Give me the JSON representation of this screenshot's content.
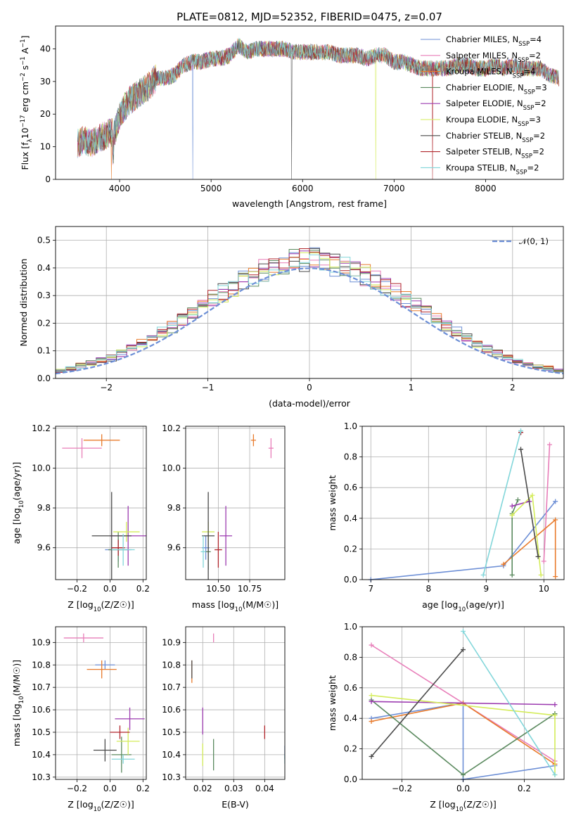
{
  "figure_title": "PLATE=0812, MJD=52352, FIBERID=0475, z=0.07",
  "series_names": [
    [
      "Chabrier MILES, N",
      "SSP",
      "=4"
    ],
    [
      "Salpeter MILES, N",
      "SSP",
      "=2"
    ],
    [
      "Kroupa MILES, N",
      "SSP",
      "=4"
    ],
    [
      "Chabrier ELODIE, N",
      "SSP",
      "=3"
    ],
    [
      "Salpeter ELODIE, N",
      "SSP",
      "=2"
    ],
    [
      "Kroupa ELODIE, N",
      "SSP",
      "=3"
    ],
    [
      "Chabrier STELIB, N",
      "SSP",
      "=2"
    ],
    [
      "Salpeter STELIB, N",
      "SSP",
      "=2"
    ],
    [
      "Kroupa STELIB, N",
      "SSP",
      "=2"
    ]
  ],
  "colors": [
    "#6d8fd6",
    "#e87eb9",
    "#e87b2c",
    "#5b8a5f",
    "#9c3bb0",
    "#d4ec5a",
    "#4a4a4a",
    "#b0262c",
    "#82d6da"
  ],
  "chart_data": [
    {
      "id": "spectrum",
      "type": "line",
      "xlabel": "wavelength [Angstrom, rest frame]",
      "ylabel": [
        "Flux [f",
        "λ",
        "10",
        "−17",
        " erg cm",
        "−2",
        " s",
        "−1",
        " A",
        "−1",
        "]"
      ],
      "xlim": [
        3300,
        8850
      ],
      "ylim": [
        0,
        47
      ],
      "xticks": [
        4000,
        5000,
        6000,
        7000,
        8000
      ],
      "yticks": [
        0,
        10,
        20,
        30,
        40
      ],
      "anchors_x": [
        3540,
        3600,
        3700,
        3800,
        3880,
        3950,
        4000,
        4050,
        4100,
        4200,
        4300,
        4400,
        4500,
        4600,
        4700,
        4800,
        4900,
        5000,
        5100,
        5200,
        5300,
        5400,
        5500,
        5600,
        5700,
        5800,
        5900,
        6000,
        6100,
        6200,
        6300,
        6400,
        6500,
        6600,
        6700,
        6800,
        6900,
        7000,
        7100,
        7200,
        7300,
        7400,
        7500,
        7600,
        7700,
        7800,
        7900,
        8000,
        8100,
        8200,
        8300,
        8400,
        8500,
        8600,
        8700,
        8800
      ],
      "anchors_y": [
        11,
        12,
        11,
        13,
        14,
        15,
        19,
        22,
        24,
        26,
        28,
        31,
        31,
        32,
        35,
        36,
        36,
        37,
        37,
        38,
        41,
        39,
        40,
        40,
        40,
        40,
        39,
        39,
        39,
        39,
        39,
        38,
        38,
        38,
        37,
        38,
        38,
        36,
        36,
        35,
        34,
        34,
        34,
        34,
        35,
        35,
        34,
        34,
        35,
        34,
        35,
        34,
        34,
        34,
        32,
        31
      ],
      "legend_position": "upper right"
    },
    {
      "id": "residuals",
      "type": "step",
      "xlabel": "(data-model)/error",
      "ylabel": "Normed distribution",
      "xlim": [
        -2.5,
        2.5
      ],
      "ylim": [
        0,
        0.55
      ],
      "xticks": [
        -2,
        -1,
        0,
        1,
        2
      ],
      "yticks": [
        0,
        0.1,
        0.2,
        0.3,
        0.4,
        0.5
      ],
      "xtick_labels": [
        "−2",
        "−1",
        "0",
        "1",
        "2"
      ],
      "ytick_labels": [
        "0.0",
        "0.1",
        "0.2",
        "0.3",
        "0.4",
        "0.5"
      ],
      "bin_width": 0.1,
      "reference_curve": {
        "name": "𝒩(0, 1)",
        "mean": 0,
        "sigma": 1,
        "color": "#6d8fd6",
        "dashed": true
      },
      "legend_position": "upper right"
    },
    {
      "id": "age_vs_Z",
      "type": "scatter",
      "xlabel": "Z [log10(Z/Z☉)]",
      "ylabel": "age [log10(age/yr)]",
      "xlim": [
        -0.33,
        0.22
      ],
      "ylim": [
        9.44,
        10.21
      ],
      "xticks": [
        -0.2,
        0.0,
        0.2
      ],
      "xtick_labels": [
        "−0.2",
        "0.0",
        "0.2"
      ],
      "yticks": [
        9.6,
        9.8,
        10.0,
        10.2
      ],
      "ytick_labels": [
        "9.6",
        "9.8",
        "10.0",
        "10.2"
      ],
      "points": [
        {
          "x": 0.05,
          "y": 9.59,
          "xerr": 0.08,
          "yerr": 0.06,
          "color": "#6d8fd6"
        },
        {
          "x": -0.17,
          "y": 10.1,
          "xerr": 0.12,
          "yerr": 0.05,
          "color": "#e87eb9"
        },
        {
          "x": -0.05,
          "y": 10.14,
          "xerr": 0.11,
          "yerr": 0.03,
          "color": "#e87b2c"
        },
        {
          "x": 0.05,
          "y": 9.59,
          "xerr": 0.06,
          "yerr": 0.09,
          "color": "#5b8a5f"
        },
        {
          "x": 0.11,
          "y": 9.66,
          "xerr": 0.11,
          "yerr": 0.15,
          "color": "#9c3bb0"
        },
        {
          "x": 0.1,
          "y": 9.68,
          "xerr": 0.08,
          "yerr": 0.05,
          "color": "#d4ec5a"
        },
        {
          "x": 0.01,
          "y": 9.66,
          "xerr": 0.12,
          "yerr": 0.22,
          "color": "#4a4a4a"
        },
        {
          "x": 0.05,
          "y": 9.6,
          "xerr": 0.04,
          "yerr": 0.04,
          "color": "#b0262c"
        },
        {
          "x": 0.08,
          "y": 9.59,
          "xerr": 0.07,
          "yerr": 0.08,
          "color": "#82d6da"
        }
      ]
    },
    {
      "id": "age_vs_mass",
      "type": "scatter",
      "xlabel": "mass [log10(M/M☉)]",
      "xlim": [
        10.24,
        11.03
      ],
      "ylim": [
        9.44,
        10.21
      ],
      "xticks": [
        10.5,
        10.75
      ],
      "xtick_labels": [
        "10.50",
        "10.75"
      ],
      "yticks": [
        9.6,
        9.8,
        10.0,
        10.2
      ],
      "ytick_labels": [
        "9.6",
        "9.8",
        "10.0",
        "10.2"
      ],
      "points": [
        {
          "x": 10.4,
          "y": 9.6,
          "xerr": 0.03,
          "yerr": 0.06,
          "color": "#6d8fd6"
        },
        {
          "x": 10.92,
          "y": 10.1,
          "xerr": 0.02,
          "yerr": 0.05,
          "color": "#e87eb9"
        },
        {
          "x": 10.78,
          "y": 10.14,
          "xerr": 0.02,
          "yerr": 0.03,
          "color": "#e87b2c"
        },
        {
          "x": 10.42,
          "y": 9.58,
          "xerr": 0.02,
          "yerr": 0.09,
          "color": "#5b8a5f"
        },
        {
          "x": 10.56,
          "y": 9.66,
          "xerr": 0.05,
          "yerr": 0.15,
          "color": "#9c3bb0"
        },
        {
          "x": 10.42,
          "y": 9.68,
          "xerr": 0.05,
          "yerr": 0.05,
          "color": "#d4ec5a"
        },
        {
          "x": 10.42,
          "y": 9.66,
          "xerr": 0.05,
          "yerr": 0.22,
          "color": "#4a4a4a"
        },
        {
          "x": 10.5,
          "y": 9.59,
          "xerr": 0.03,
          "yerr": 0.09,
          "color": "#b0262c"
        },
        {
          "x": 10.38,
          "y": 9.58,
          "xerr": 0.02,
          "yerr": 0.08,
          "color": "#82d6da"
        }
      ]
    },
    {
      "id": "weight_vs_age",
      "type": "line",
      "xlabel": "age [log10(age/yr)]",
      "ylabel": "mass weight",
      "xlim": [
        6.85,
        10.35
      ],
      "ylim": [
        0,
        1.0
      ],
      "xticks": [
        7,
        8,
        9,
        10
      ],
      "yticks": [
        0,
        0.2,
        0.4,
        0.6,
        0.8,
        1.0
      ],
      "ytick_labels": [
        "0.0",
        "0.2",
        "0.4",
        "0.6",
        "0.8",
        "1.0"
      ],
      "series": [
        {
          "color": "#6d8fd6",
          "x": [
            7.0,
            9.3,
            10.2
          ],
          "y": [
            0.0,
            0.09,
            0.51
          ]
        },
        {
          "color": "#e87eb9",
          "x": [
            10.0,
            10.1
          ],
          "y": [
            0.12,
            0.88
          ]
        },
        {
          "color": "#e87b2c",
          "x": [
            9.3,
            10.2,
            10.2
          ],
          "y": [
            0.1,
            0.39,
            0.02
          ]
        },
        {
          "color": "#5b8a5f",
          "x": [
            9.45,
            9.45,
            9.55
          ],
          "y": [
            0.03,
            0.43,
            0.52
          ]
        },
        {
          "color": "#9c3bb0",
          "x": [
            9.45,
            9.75
          ],
          "y": [
            0.48,
            0.51
          ]
        },
        {
          "color": "#d4ec5a",
          "x": [
            9.45,
            9.8,
            9.95
          ],
          "y": [
            0.42,
            0.55,
            0.03
          ]
        },
        {
          "color": "#4a4a4a",
          "x": [
            9.6,
            9.9
          ],
          "y": [
            0.85,
            0.15
          ]
        },
        {
          "color": "#b0262c",
          "x": [
            9.6,
            9.6
          ],
          "y": [
            0.96,
            0.96
          ]
        },
        {
          "color": "#82d6da",
          "x": [
            8.95,
            9.6
          ],
          "y": [
            0.03,
            0.97
          ]
        }
      ]
    },
    {
      "id": "mass_vs_Z",
      "type": "scatter",
      "xlabel": "Z [log10(Z/Z☉)]",
      "ylabel": "mass [log10(M/M☉)]",
      "xlim": [
        -0.33,
        0.22
      ],
      "ylim": [
        10.29,
        10.97
      ],
      "xticks": [
        -0.2,
        0.0,
        0.2
      ],
      "xtick_labels": [
        "−0.2",
        "0.0",
        "0.2"
      ],
      "yticks": [
        10.3,
        10.4,
        10.5,
        10.6,
        10.7,
        10.8,
        10.9
      ],
      "ytick_labels": [
        "10.3",
        "10.4",
        "10.5",
        "10.6",
        "10.7",
        "10.8",
        "10.9"
      ],
      "points": [
        {
          "x": -0.03,
          "y": 10.8,
          "xerr": 0.06,
          "yerr": 0.02,
          "color": "#6d8fd6"
        },
        {
          "x": -0.16,
          "y": 10.92,
          "xerr": 0.12,
          "yerr": 0.02,
          "color": "#e87eb9"
        },
        {
          "x": -0.05,
          "y": 10.78,
          "xerr": 0.09,
          "yerr": 0.04,
          "color": "#e87b2c"
        },
        {
          "x": 0.07,
          "y": 10.4,
          "xerr": 0.06,
          "yerr": 0.08,
          "color": "#5b8a5f"
        },
        {
          "x": 0.12,
          "y": 10.56,
          "xerr": 0.09,
          "yerr": 0.05,
          "color": "#9c3bb0"
        },
        {
          "x": 0.11,
          "y": 10.46,
          "xerr": 0.07,
          "yerr": 0.06,
          "color": "#d4ec5a"
        },
        {
          "x": -0.03,
          "y": 10.42,
          "xerr": 0.07,
          "yerr": 0.05,
          "color": "#4a4a4a"
        },
        {
          "x": 0.06,
          "y": 10.5,
          "xerr": 0.06,
          "yerr": 0.03,
          "color": "#b0262c"
        },
        {
          "x": 0.08,
          "y": 10.38,
          "xerr": 0.07,
          "yerr": 0.02,
          "color": "#82d6da"
        }
      ]
    },
    {
      "id": "mass_vs_ebv",
      "type": "scatter",
      "xlabel": "E(B-V)",
      "xlim": [
        0.0145,
        0.0465
      ],
      "ylim": [
        10.29,
        10.97
      ],
      "xticks": [
        0.02,
        0.03,
        0.04
      ],
      "xtick_labels": [
        "0.02",
        "0.03",
        "0.04"
      ],
      "yticks": [
        10.3,
        10.4,
        10.5,
        10.6,
        10.7,
        10.8,
        10.9
      ],
      "ytick_labels": [
        "10.3",
        "10.4",
        "10.5",
        "10.6",
        "10.7",
        "10.8",
        "10.9"
      ],
      "points": [
        {
          "x": 0.0465,
          "y": 10.41,
          "xerr": 0.0,
          "yerr": 0.03,
          "color": "#6d8fd6"
        },
        {
          "x": 0.0235,
          "y": 10.92,
          "xerr": 0.0,
          "yerr": 0.02,
          "color": "#e87eb9"
        },
        {
          "x": 0.0165,
          "y": 10.77,
          "xerr": 0.0,
          "yerr": 0.05,
          "color": "#e87b2c"
        },
        {
          "x": 0.0235,
          "y": 10.4,
          "xerr": 0.0,
          "yerr": 0.07,
          "color": "#5b8a5f"
        },
        {
          "x": 0.02,
          "y": 10.55,
          "xerr": 0.0,
          "yerr": 0.06,
          "color": "#9c3bb0"
        },
        {
          "x": 0.02,
          "y": 10.4,
          "xerr": 0.0,
          "yerr": 0.05,
          "color": "#d4ec5a"
        },
        {
          "x": 0.0165,
          "y": 10.78,
          "xerr": 0.0,
          "yerr": 0.04,
          "color": "#4a4a4a"
        },
        {
          "x": 0.04,
          "y": 10.5,
          "xerr": 0.0,
          "yerr": 0.03,
          "color": "#b0262c"
        },
        {
          "x": 0.0465,
          "y": 10.38,
          "xerr": 0.0,
          "yerr": 0.02,
          "color": "#82d6da"
        }
      ]
    },
    {
      "id": "weight_vs_Z",
      "type": "line",
      "xlabel": "Z [log10(Z/Z☉)]",
      "ylabel": "mass weight",
      "xlim": [
        -0.33,
        0.33
      ],
      "ylim": [
        0,
        1.0
      ],
      "xticks": [
        -0.2,
        0.0,
        0.2
      ],
      "xtick_labels": [
        "−0.2",
        "0.0",
        "0.2"
      ],
      "yticks": [
        0,
        0.2,
        0.4,
        0.6,
        0.8,
        1.0
      ],
      "ytick_labels": [
        "0.0",
        "0.2",
        "0.4",
        "0.6",
        "0.8",
        "1.0"
      ],
      "series": [
        {
          "color": "#6d8fd6",
          "x": [
            -0.3,
            0.0,
            0.0,
            0.0,
            0.3
          ],
          "y": [
            0.4,
            0.5,
            0.0,
            0.0,
            0.09
          ]
        },
        {
          "color": "#e87eb9",
          "x": [
            -0.3,
            0.3
          ],
          "y": [
            0.88,
            0.12
          ]
        },
        {
          "color": "#e87b2c",
          "x": [
            -0.3,
            0.0,
            0.3
          ],
          "y": [
            0.38,
            0.5,
            0.1
          ]
        },
        {
          "color": "#5b8a5f",
          "x": [
            -0.3,
            0.0,
            0.3,
            0.3
          ],
          "y": [
            0.52,
            0.03,
            0.43,
            0.43
          ]
        },
        {
          "color": "#9c3bb0",
          "x": [
            -0.3,
            0.3
          ],
          "y": [
            0.51,
            0.49
          ]
        },
        {
          "color": "#d4ec5a",
          "x": [
            -0.3,
            0.3,
            0.3
          ],
          "y": [
            0.55,
            0.42,
            0.03
          ]
        },
        {
          "color": "#4a4a4a",
          "x": [
            -0.3,
            0.0
          ],
          "y": [
            0.15,
            0.85
          ]
        },
        {
          "color": "#82d6da",
          "x": [
            0.0,
            0.3
          ],
          "y": [
            0.97,
            0.03
          ]
        }
      ]
    }
  ]
}
